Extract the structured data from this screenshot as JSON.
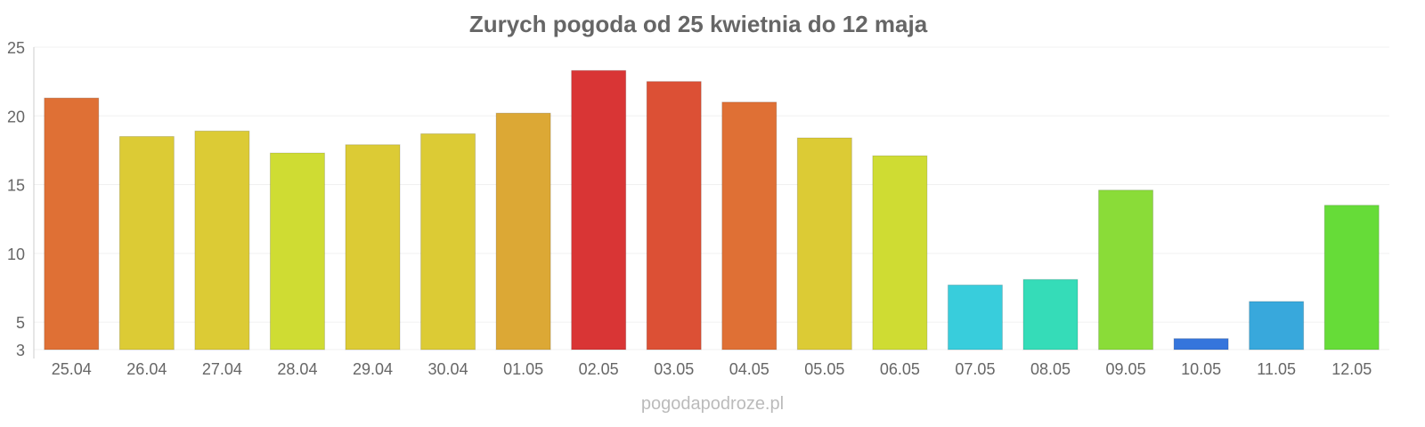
{
  "chart_data": {
    "type": "bar",
    "title": "Zurych pogoda od 25 kwietnia do 12 maja",
    "xlabel": "",
    "ylabel": "",
    "ylim": [
      3,
      25
    ],
    "yticks": [
      3,
      5,
      10,
      15,
      20,
      25
    ],
    "grid": true,
    "categories": [
      "25.04",
      "26.04",
      "27.04",
      "28.04",
      "29.04",
      "30.04",
      "01.05",
      "02.05",
      "03.05",
      "04.05",
      "05.05",
      "06.05",
      "07.05",
      "08.05",
      "09.05",
      "10.05",
      "11.05",
      "12.05"
    ],
    "values": [
      21.3,
      18.5,
      18.9,
      17.3,
      17.9,
      18.7,
      20.2,
      23.3,
      22.5,
      21.0,
      18.4,
      17.1,
      7.7,
      8.1,
      14.6,
      3.8,
      6.5,
      13.5
    ],
    "colors": [
      "#df7035",
      "#dccb35",
      "#dccb35",
      "#cfdc33",
      "#dccb35",
      "#dccb35",
      "#dca835",
      "#d93535",
      "#dc5035",
      "#df7035",
      "#dccb35",
      "#cfdc33",
      "#38cddc",
      "#35dcb8",
      "#8adc38",
      "#3575dc",
      "#38a8dc",
      "#66dc38"
    ]
  },
  "credit": "pogodapodroze.pl"
}
